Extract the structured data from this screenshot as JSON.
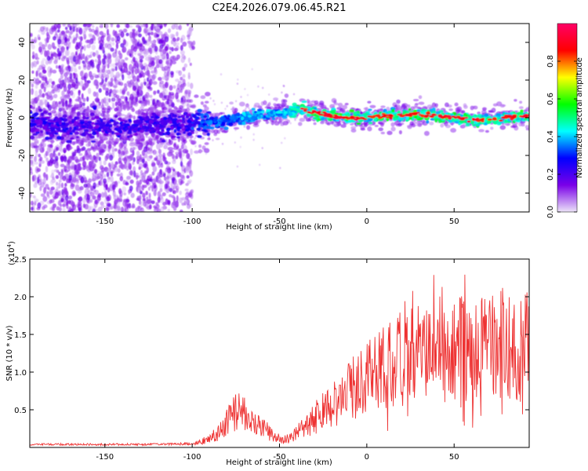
{
  "chart_data": [
    {
      "type": "heatmap",
      "title": "C2E4.2026.079.06.45.R21",
      "xlabel": "Height of straight line (km)",
      "ylabel": "Frequency (Hz)",
      "xlim": [
        -193,
        93
      ],
      "ylim": [
        -50,
        50
      ],
      "xticks": [
        -150,
        -100,
        -50,
        0,
        50
      ],
      "yticks": [
        -40,
        -20,
        0,
        20,
        40
      ],
      "colorbar": {
        "label": "Normalized spectral amplitude",
        "range": [
          0,
          1
        ],
        "ticks": [
          0.0,
          0.2,
          0.4,
          0.6,
          0.8
        ],
        "tick_labels": [
          "0.0",
          "0.2",
          "0.4",
          "0.6",
          "0.8"
        ],
        "colormap": [
          "#ece4f8",
          "#7a00e8",
          "#0000ff",
          "#00ffff",
          "#00ff00",
          "#ffff00",
          "#ff0000",
          "#ff0066"
        ]
      },
      "ridge": {
        "x": [
          -193,
          -160,
          -120,
          -100,
          -85,
          -70,
          -55,
          -45,
          -38,
          -30,
          -20,
          -10,
          0,
          10,
          20,
          30,
          40,
          50,
          60,
          70,
          80,
          93
        ],
        "freq": [
          -3,
          -5,
          -4,
          -3,
          -2,
          0,
          2,
          3,
          5,
          3,
          1,
          0,
          0,
          1,
          1,
          2,
          1,
          0,
          -1,
          -1,
          0,
          1
        ]
      }
    },
    {
      "type": "line",
      "xlabel": "Height of straight line (km)",
      "ylabel": "SNR (10 * v/v)",
      "y_multiplier": "(x10",
      "y_multiplier_exp": "4",
      "y_multiplier_close": ")",
      "xlim": [
        -193,
        93
      ],
      "ylim": [
        0,
        2.5
      ],
      "xticks": [
        -150,
        -100,
        -50,
        0,
        50
      ],
      "yticks": [
        0.5,
        1.0,
        1.5,
        2.0,
        2.5
      ],
      "ytick_labels": [
        "0.5",
        "1.0",
        "1.5",
        "2.0",
        "2.5"
      ],
      "color": "#ee3333",
      "series": [
        {
          "name": "SNR",
          "x": [
            -193,
            -180,
            -160,
            -140,
            -120,
            -100,
            -95,
            -90,
            -85,
            -80,
            -76,
            -72,
            -68,
            -64,
            -60,
            -56,
            -52,
            -48,
            -44,
            -40,
            -35,
            -30,
            -25,
            -20,
            -15,
            -10,
            -5,
            0,
            5,
            10,
            15,
            20,
            25,
            30,
            35,
            40,
            45,
            50,
            55,
            60,
            65,
            70,
            75,
            80,
            85,
            90,
            93
          ],
          "y": [
            0.04,
            0.04,
            0.04,
            0.04,
            0.04,
            0.05,
            0.07,
            0.12,
            0.2,
            0.35,
            0.45,
            0.5,
            0.45,
            0.38,
            0.26,
            0.2,
            0.13,
            0.1,
            0.12,
            0.2,
            0.3,
            0.38,
            0.5,
            0.58,
            0.65,
            0.75,
            0.82,
            0.95,
            1.05,
            1.1,
            1.1,
            1.18,
            1.22,
            1.3,
            1.3,
            1.32,
            1.25,
            1.3,
            1.32,
            1.28,
            1.3,
            1.3,
            1.4,
            1.35,
            1.3,
            1.32,
            1.35
          ]
        }
      ]
    }
  ]
}
